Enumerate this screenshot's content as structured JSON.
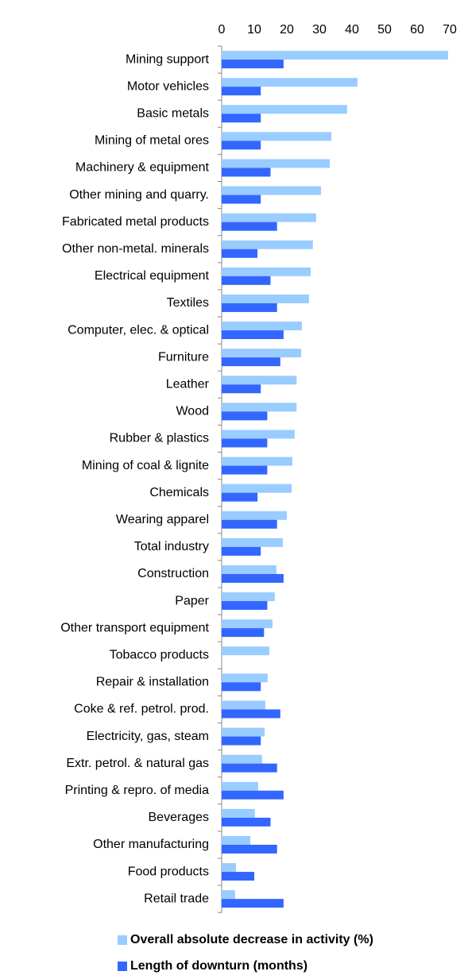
{
  "chart_data": {
    "type": "bar",
    "orientation": "horizontal",
    "categories": [
      "Mining support",
      "Motor vehicles",
      "Basic metals",
      "Mining of metal ores",
      "Machinery & equipment",
      "Other mining and quarry.",
      "Fabricated metal products",
      "Other non-metal. minerals",
      "Electrical equipment",
      "Textiles",
      "Computer, elec. & optical",
      "Furniture",
      "Leather",
      "Wood ",
      "Rubber & plastics",
      "Mining of coal & lignite",
      "Chemicals",
      "Wearing apparel",
      "Total industry",
      "Construction",
      "Paper",
      "Other transport equipment",
      "Tobacco products",
      "Repair & installation",
      "Coke & ref. petrol. prod.",
      "Electricity, gas, steam",
      "Extr. petrol. & natural gas",
      "Printing & repro. of media",
      "Beverages",
      "Other manufacturing",
      "Food products",
      "Retail trade"
    ],
    "series": [
      {
        "name": "Overall absolute decrease in activity (%)",
        "color": "#99ccff",
        "values": [
          69.5,
          41.7,
          38.5,
          33.7,
          33.2,
          30.5,
          29,
          28,
          27.3,
          26.8,
          24.6,
          24.4,
          23,
          23,
          22.4,
          21.7,
          21.5,
          20,
          18.8,
          16.8,
          16.3,
          15.6,
          14.6,
          14.1,
          13.4,
          13.2,
          12.4,
          11.2,
          10.2,
          8.8,
          4.4,
          4.1
        ]
      },
      {
        "name": "Length of downturn (months)",
        "color": "#3366ff",
        "values": [
          19,
          12,
          12,
          12,
          15,
          12,
          17,
          11,
          15,
          17,
          19,
          18,
          12,
          14,
          14,
          14,
          11,
          17,
          12,
          19,
          14,
          13,
          null,
          12,
          18,
          12,
          17,
          19,
          15,
          17,
          10,
          19
        ]
      }
    ],
    "xlim": [
      0,
      70
    ],
    "xticks": [
      0,
      10,
      20,
      30,
      40,
      50,
      60,
      70
    ],
    "legend": "bottom"
  }
}
